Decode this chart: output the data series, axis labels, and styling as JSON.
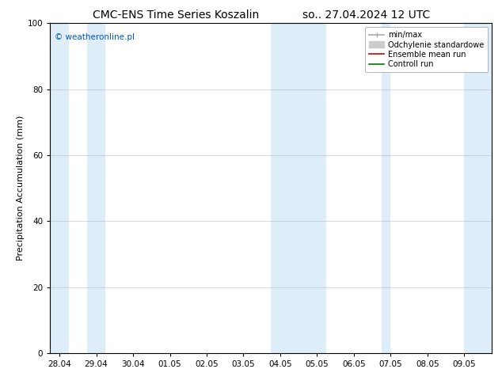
{
  "title_left": "CMC-ENS Time Series Koszalin",
  "title_right": "so.. 27.04.2024 12 UTC",
  "ylabel": "Precipitation Accumulation (mm)",
  "ylim": [
    0,
    100
  ],
  "yticks": [
    0,
    20,
    40,
    60,
    80,
    100
  ],
  "x_labels": [
    "28.04",
    "29.04",
    "30.04",
    "01.05",
    "02.05",
    "03.05",
    "04.05",
    "05.05",
    "06.05",
    "07.05",
    "08.05",
    "09.05"
  ],
  "x_positions": [
    0,
    1,
    2,
    3,
    4,
    5,
    6,
    7,
    8,
    9,
    10,
    11
  ],
  "xlim": [
    -0.25,
    11.75
  ],
  "shaded_bands": [
    [
      -0.25,
      0.25
    ],
    [
      0.75,
      1.25
    ],
    [
      5.75,
      7.25
    ],
    [
      8.75,
      9.0
    ],
    [
      11.0,
      11.75
    ]
  ],
  "band_color": "#ddeef8",
  "background_color": "#ffffff",
  "plot_bg_color": "#ffffff",
  "watermark": "© weatheronline.pl",
  "watermark_color": "#0055cc",
  "legend_items": [
    {
      "label": "min/max",
      "color": "#aaaaaa",
      "lw": 1.2
    },
    {
      "label": "Odchylenie standardowe",
      "color": "#cccccc",
      "lw": 5
    },
    {
      "label": "Ensemble mean run",
      "color": "#cc0000",
      "lw": 1.2
    },
    {
      "label": "Controll run",
      "color": "#007700",
      "lw": 1.2
    }
  ],
  "title_fontsize": 10,
  "tick_fontsize": 7.5,
  "ylabel_fontsize": 8,
  "watermark_fontsize": 7.5,
  "legend_fontsize": 7,
  "grid_color": "#bbbbbb",
  "grid_lw": 0.4,
  "spine_color": "#000000",
  "spine_lw": 0.8
}
